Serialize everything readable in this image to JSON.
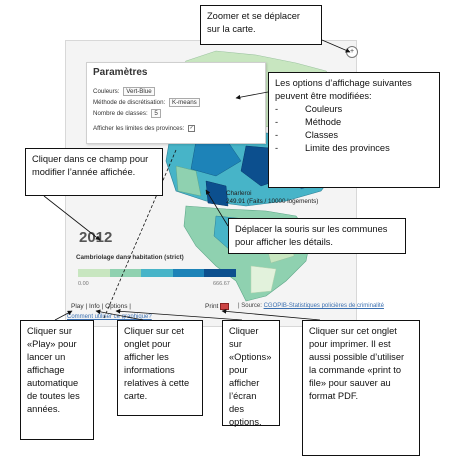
{
  "panel": {
    "title": "Paramètres",
    "colors_label": "Couleurs:",
    "colors_value": "Vert-Blue",
    "method_label": "Méthode de discrétisation:",
    "method_value": "K-means",
    "classes_label": "Nombre de classes:",
    "classes_value": "5",
    "limits_label": "Afficher les limites des provinces:",
    "limits_checked": "✓"
  },
  "map": {
    "year": "2012",
    "legend_title": "Cambriolage dans habitation (strict)",
    "legend_min": "0.00",
    "legend_max": "666.67",
    "legend_colors": [
      "#c8e6c0",
      "#8fd1b0",
      "#47b4c8",
      "#1d83b8",
      "#0c4f8e"
    ],
    "tooltip_city": "Charleroi",
    "tooltip_value": "249.91 (Faits / 10000 logements)"
  },
  "footer": {
    "tabs": "Play | Info | Options |",
    "link": "Comment utiliser ce graphique?",
    "print": "Print",
    "source_prefix": "| Source:",
    "source_link": "CGOPIB-Statistiques policières de criminalité"
  },
  "callouts": {
    "zoom": "Zoomer et se déplacer sur la carte.",
    "options_intro": "Les options d’affichage suivantes peuvent être modifiées:",
    "options_list": [
      "Couleurs",
      "Méthode",
      "Classes",
      "Limite des provinces"
    ],
    "bullet": "-",
    "year": "Cliquer dans ce champ pour modifier l’année affichée.",
    "mouse": "Déplacer la souris sur les communes pour afficher les détails.",
    "play": "Cliquer sur «Play» pour lancer un affichage automatique de toutes les années.",
    "info": "Cliquer sur cet onglet pour afficher les informations relatives à cette carte.",
    "options": "Cliquer sur «Options» pour afficher l’écran des options.",
    "print": "Cliquer sur cet onglet pour imprimer. Il est aussi possible d’utiliser la commande «print to file» pour sauver au format PDF."
  }
}
